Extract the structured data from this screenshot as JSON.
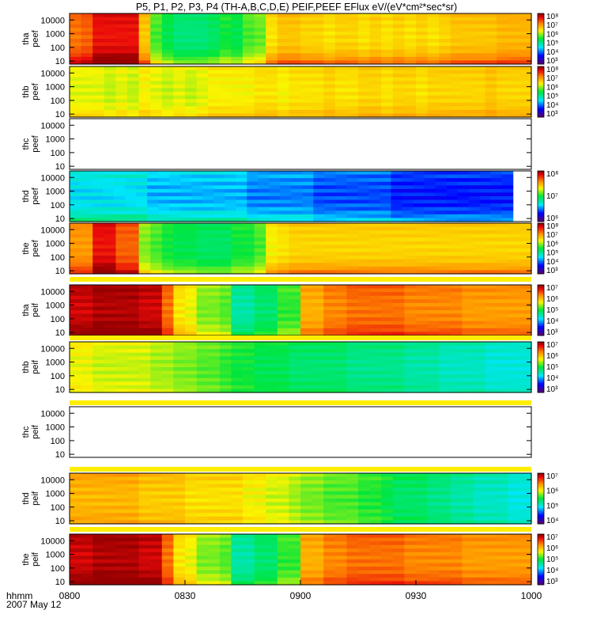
{
  "title": "P5, P1, P2, P3, P4 (TH-A,B,C,D,E) PEIF,PEEF EFlux eV/(eV*cm²*sec*sr)",
  "time_axis": {
    "label_line1": "hhmm",
    "label_line2": "2007 May 12",
    "ticks": [
      "0800",
      "0830",
      "0900",
      "0930",
      "1000"
    ],
    "tick_hours": [
      8.0,
      8.5,
      9.0,
      9.5,
      10.0
    ],
    "range": [
      8.0,
      10.0
    ]
  },
  "y_ticks": [
    "10000",
    "1000",
    "100",
    "10"
  ],
  "y_tick_values": [
    10000,
    1000,
    100,
    10
  ],
  "y_range_ev": [
    6,
    30000
  ],
  "colormap": "rainbow",
  "chart_data": [
    {
      "type": "heatmap",
      "probe": "tha",
      "species": "peef",
      "ylabel_probe": "tha",
      "ylabel_species": "peef",
      "colorbar": {
        "labels": [
          "10⁸",
          "10⁷",
          "10⁶",
          "10⁵",
          "10⁴",
          "10³"
        ],
        "log_min": 3,
        "log_max": 8
      },
      "column_log_flux": [
        7.2,
        7.3,
        7.7,
        7.7,
        7.7,
        7.7,
        6.7,
        5.8,
        5.5,
        5.3,
        5.3,
        5.3,
        5.4,
        5.6,
        5.5,
        5.8,
        5.9,
        6.5,
        6.7,
        6.7,
        6.6,
        6.6,
        6.5,
        6.6,
        6.6,
        6.5,
        6.6,
        6.5,
        6.6,
        6.5,
        6.6,
        6.5,
        6.6,
        6.7,
        6.7,
        6.7,
        6.7,
        6.8,
        6.8,
        6.8
      ],
      "low_energy_boost": 0.6
    },
    {
      "type": "heatmap",
      "probe": "thb",
      "species": "peef",
      "ylabel_probe": "thb",
      "ylabel_species": "peef",
      "colorbar": {
        "labels": [
          "10⁸",
          "10⁷",
          "10⁶",
          "10⁵",
          "10⁴",
          "10³"
        ],
        "log_min": 3,
        "log_max": 8
      },
      "column_log_flux": [
        6.3,
        6.3,
        6.3,
        6.2,
        6.3,
        6.2,
        6.4,
        6.3,
        6.2,
        6.3,
        6.2,
        6.3,
        6.4,
        6.4,
        6.4,
        6.4,
        6.5,
        6.5,
        6.4,
        6.5,
        6.5,
        6.5,
        6.6,
        6.5,
        6.5,
        6.6,
        6.6,
        6.5,
        6.6,
        6.6,
        6.5,
        6.6,
        6.6,
        6.6,
        6.6,
        6.6,
        6.7,
        6.6,
        6.6,
        6.6
      ],
      "low_energy_boost": 0.2
    },
    {
      "type": "heatmap",
      "probe": "thc",
      "species": "peef",
      "ylabel_probe": "thc",
      "ylabel_species": "peef",
      "colorbar": null,
      "column_log_flux": [],
      "low_energy_boost": 0
    },
    {
      "type": "heatmap",
      "probe": "thd",
      "species": "peef",
      "ylabel_probe": "thd",
      "ylabel_species": "peef",
      "colorbar": {
        "labels": [
          "10⁸",
          "10⁷",
          "10⁶"
        ],
        "log_min": 5.5,
        "log_max": 8
      },
      "column_log_flux": [
        6.4,
        6.4,
        6.4,
        6.4,
        6.4,
        6.4,
        6.4,
        6.3,
        6.3,
        6.3,
        6.3,
        6.3,
        6.3,
        6.3,
        6.3,
        6.3,
        6.2,
        6.2,
        6.2,
        6.2,
        6.2,
        6.2,
        6.1,
        6.1,
        6.1,
        6.1,
        6.1,
        6.1,
        6.1,
        6.0,
        6.0,
        6.0,
        6.0,
        6.0,
        6.0,
        6.0,
        6.0,
        6.0,
        6.0,
        6.0
      ],
      "low_energy_boost": 0.2,
      "data_end_hour": 9.92
    },
    {
      "type": "heatmap",
      "probe": "the",
      "species": "peef",
      "ylabel_probe": "the",
      "ylabel_species": "peef",
      "colorbar": {
        "labels": [
          "10⁸",
          "10⁷",
          "10⁶",
          "10⁵",
          "10⁴",
          "10³"
        ],
        "log_min": 3,
        "log_max": 8
      },
      "column_log_flux": [
        7.0,
        7.0,
        7.7,
        7.7,
        7.3,
        7.3,
        6.0,
        5.8,
        5.6,
        5.5,
        5.5,
        5.4,
        5.4,
        5.4,
        5.6,
        5.6,
        5.8,
        6.4,
        6.5,
        6.6,
        6.6,
        6.6,
        6.6,
        6.6,
        6.6,
        6.6,
        6.6,
        6.6,
        6.6,
        6.6,
        6.6,
        6.6,
        6.6,
        6.6,
        6.6,
        6.6,
        6.6,
        6.6,
        6.6,
        6.6
      ],
      "low_energy_boost": 0.5
    },
    {
      "type": "heatmap",
      "probe": "tha",
      "species": "peif",
      "ylabel_probe": "tha",
      "ylabel_species": "peif",
      "colorbar": {
        "labels": [
          "10⁷",
          "10⁶",
          "10⁵",
          "10⁴",
          "10³"
        ],
        "log_min": 3,
        "log_max": 7
      },
      "column_log_flux": [
        6.9,
        6.9,
        7.0,
        7.0,
        7.0,
        7.0,
        6.9,
        6.9,
        6.4,
        5.8,
        5.7,
        5.4,
        5.4,
        5.3,
        4.7,
        4.7,
        4.9,
        4.9,
        5.2,
        5.2,
        6.1,
        6.1,
        6.3,
        6.3,
        6.4,
        6.4,
        6.4,
        6.4,
        6.4,
        6.3,
        6.3,
        6.3,
        6.3,
        6.3,
        6.2,
        6.2,
        6.2,
        6.2,
        6.2,
        6.2
      ],
      "low_energy_boost": 0.2
    },
    {
      "type": "heatmap",
      "probe": "thb",
      "species": "peif",
      "ylabel_probe": "thb",
      "ylabel_species": "peif",
      "colorbar": {
        "labels": [
          "10⁷",
          "10⁶",
          "10⁵",
          "10⁴",
          "10³"
        ],
        "log_min": 3,
        "log_max": 7
      },
      "column_log_flux": [
        5.7,
        5.7,
        5.6,
        5.6,
        5.6,
        5.6,
        5.6,
        5.5,
        5.5,
        5.4,
        5.4,
        5.3,
        5.3,
        5.2,
        5.1,
        5.1,
        5.0,
        5.0,
        5.0,
        4.9,
        4.9,
        4.9,
        4.9,
        4.9,
        4.8,
        4.8,
        4.8,
        4.8,
        4.8,
        4.7,
        4.7,
        4.7,
        4.6,
        4.6,
        4.6,
        4.6,
        4.5,
        4.5,
        4.5,
        4.5
      ],
      "low_energy_boost": 0
    },
    {
      "type": "heatmap",
      "probe": "thc",
      "species": "peif",
      "ylabel_probe": "thc",
      "ylabel_species": "peif",
      "colorbar": null,
      "column_log_flux": [],
      "low_energy_boost": 0
    },
    {
      "type": "heatmap",
      "probe": "thd",
      "species": "peif",
      "ylabel_probe": "thd",
      "ylabel_species": "peif",
      "colorbar": {
        "labels": [
          "10⁷",
          "10⁶",
          "10⁵",
          "10⁴"
        ],
        "log_min": 3.5,
        "log_max": 7
      },
      "column_log_flux": [
        6.2,
        6.2,
        6.2,
        6.2,
        6.2,
        6.2,
        6.1,
        6.1,
        6.1,
        6.1,
        6.0,
        6.0,
        6.0,
        6.0,
        6.0,
        5.9,
        5.9,
        5.8,
        5.8,
        5.7,
        5.6,
        5.6,
        5.5,
        5.5,
        5.5,
        5.4,
        5.4,
        5.3,
        5.2,
        5.2,
        5.2,
        5.1,
        5.1,
        5.0,
        5.0,
        4.9,
        4.9,
        4.9,
        4.8,
        4.8
      ],
      "low_energy_boost": 0
    },
    {
      "type": "heatmap",
      "probe": "the",
      "species": "peif",
      "ylabel_probe": "the",
      "ylabel_species": "peif",
      "colorbar": {
        "labels": [
          "10⁷",
          "10⁶",
          "10⁵",
          "10⁴",
          "10³"
        ],
        "log_min": 3,
        "log_max": 7
      },
      "column_log_flux": [
        6.9,
        6.9,
        7.0,
        7.0,
        7.0,
        7.0,
        6.9,
        6.9,
        6.4,
        5.8,
        5.7,
        5.4,
        5.4,
        5.3,
        4.7,
        4.7,
        4.9,
        4.9,
        5.2,
        5.2,
        6.1,
        6.1,
        6.3,
        6.3,
        6.4,
        6.4,
        6.4,
        6.4,
        6.4,
        6.3,
        6.3,
        6.3,
        6.3,
        6.3,
        6.2,
        6.2,
        6.2,
        6.2,
        6.2,
        6.2
      ],
      "low_energy_boost": 0.2
    }
  ]
}
